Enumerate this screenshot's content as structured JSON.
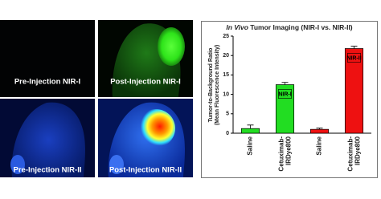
{
  "panels": [
    {
      "label": "Pre-Injection NIR-I"
    },
    {
      "label": "Post-Injection NIR-I"
    },
    {
      "label": "Pre-Injection NIR-II"
    },
    {
      "label": "Post-Injection NIR-II"
    }
  ],
  "chart_data": {
    "type": "bar",
    "title_italic": "In Vivo",
    "title": "Tumor Imaging (NIR-I vs. NIR-II)",
    "y_label": [
      "Tumor-to-Background Ratio",
      "(Mean Fluorescence Intensity)"
    ],
    "categories": [
      "Saline",
      "Cetuximab-IRDye800",
      "Saline",
      "Cetuximab-IRDye800"
    ],
    "values": [
      1.2,
      12.5,
      1.0,
      21.8
    ],
    "errors": [
      0.9,
      0.6,
      0.3,
      0.6
    ],
    "colors": [
      "#22dd22",
      "#22dd22",
      "#ee1111",
      "#ee1111"
    ],
    "bar_labels": [
      null,
      "NIR-I",
      null,
      "NIR-II"
    ],
    "ylim": [
      0,
      25
    ],
    "yticks": [
      0,
      5,
      10,
      15,
      20,
      25
    ]
  }
}
